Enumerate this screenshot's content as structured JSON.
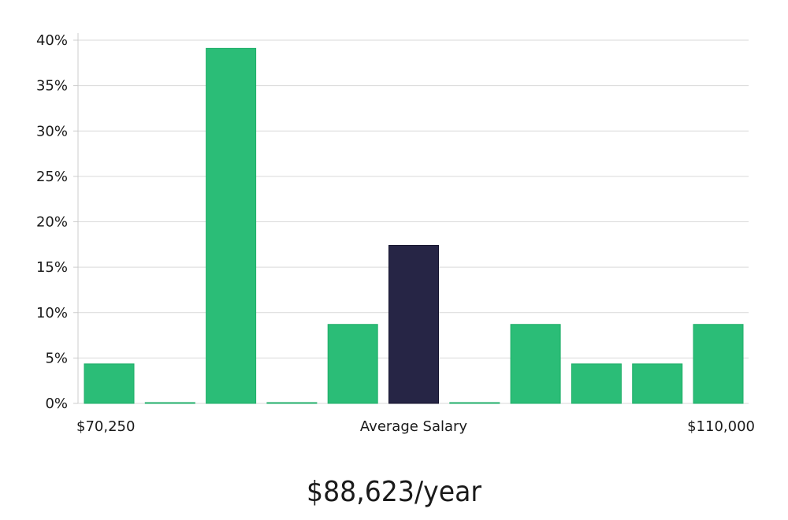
{
  "chart_data": {
    "type": "bar",
    "title": "",
    "xlabel": "",
    "ylabel": "",
    "y_ticks": [
      "0%",
      "5%",
      "10%",
      "15%",
      "20%",
      "25%",
      "30%",
      "35%",
      "40%"
    ],
    "y_tick_values": [
      0,
      5,
      10,
      15,
      20,
      25,
      30,
      35,
      40
    ],
    "ylim": [
      0,
      41
    ],
    "grid": true,
    "x_range_labels": {
      "min": "$70,250",
      "center": "Average Salary",
      "max": "$110,000"
    },
    "values": [
      4.35,
      0,
      39.1,
      0,
      8.7,
      17.4,
      0,
      8.7,
      4.35,
      4.35,
      8.7
    ],
    "highlight_index": 5,
    "colors": {
      "bar": "#2bbd77",
      "bar_border": "#1fae68",
      "highlight": "#262545",
      "grid": "#d9d9d9",
      "axis": "#cccccc"
    }
  },
  "salary": {
    "text": "$88,623/year"
  }
}
